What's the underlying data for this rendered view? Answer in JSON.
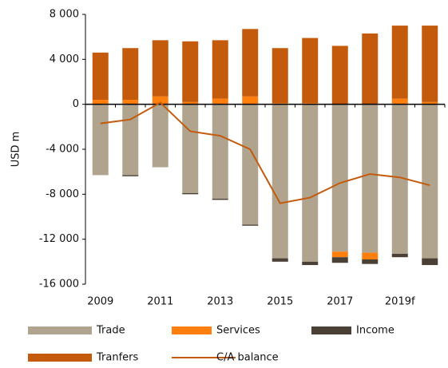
{
  "chart_data": {
    "type": "stacked-bar-line",
    "y_label": "USD m",
    "categories": [
      "2009",
      null,
      "2011",
      null,
      "2013",
      null,
      "2015",
      null,
      "2017",
      null,
      "2019f",
      null
    ],
    "series": [
      {
        "name": "Trade",
        "color": "#b0a48e",
        "kind": "bar",
        "values": [
          -6300,
          -6300,
          -5600,
          -7900,
          -8400,
          -10700,
          -13700,
          -14000,
          -13100,
          -13200,
          -13300,
          -13700
        ]
      },
      {
        "name": "Services",
        "color": "#ff7f0e",
        "kind": "bar",
        "values": [
          400,
          400,
          700,
          200,
          500,
          700,
          100,
          100,
          -500,
          -600,
          500,
          200
        ]
      },
      {
        "name": "Income",
        "color": "#4a4035",
        "kind": "bar",
        "values": [
          0,
          -100,
          0,
          -100,
          -100,
          -100,
          -300,
          -300,
          -500,
          -400,
          -300,
          -600
        ]
      },
      {
        "name": "Tranfers",
        "color": "#c45a0c",
        "kind": "bar",
        "values": [
          4200,
          4600,
          5000,
          5400,
          5200,
          6000,
          4900,
          5800,
          5200,
          6300,
          6500,
          6800
        ]
      },
      {
        "name": "C/A balance",
        "color": "#c45a0c",
        "kind": "line",
        "values": [
          -1700,
          -1350,
          150,
          -2400,
          -2800,
          -4000,
          -8800,
          -8300,
          -7000,
          -6200,
          -6500,
          -7200
        ]
      }
    ],
    "ylim": [
      -16000,
      8000
    ],
    "yticks": [
      {
        "value": -16000,
        "label": "-16 000"
      },
      {
        "value": -12000,
        "label": "-12 000"
      },
      {
        "value": -8000,
        "label": "-8 000"
      },
      {
        "value": -4000,
        "label": "-4 000"
      },
      0,
      {
        "value": 4000,
        "label": "4 000"
      },
      {
        "value": 8000,
        "label": "8 000"
      }
    ],
    "legend": "bottom"
  }
}
